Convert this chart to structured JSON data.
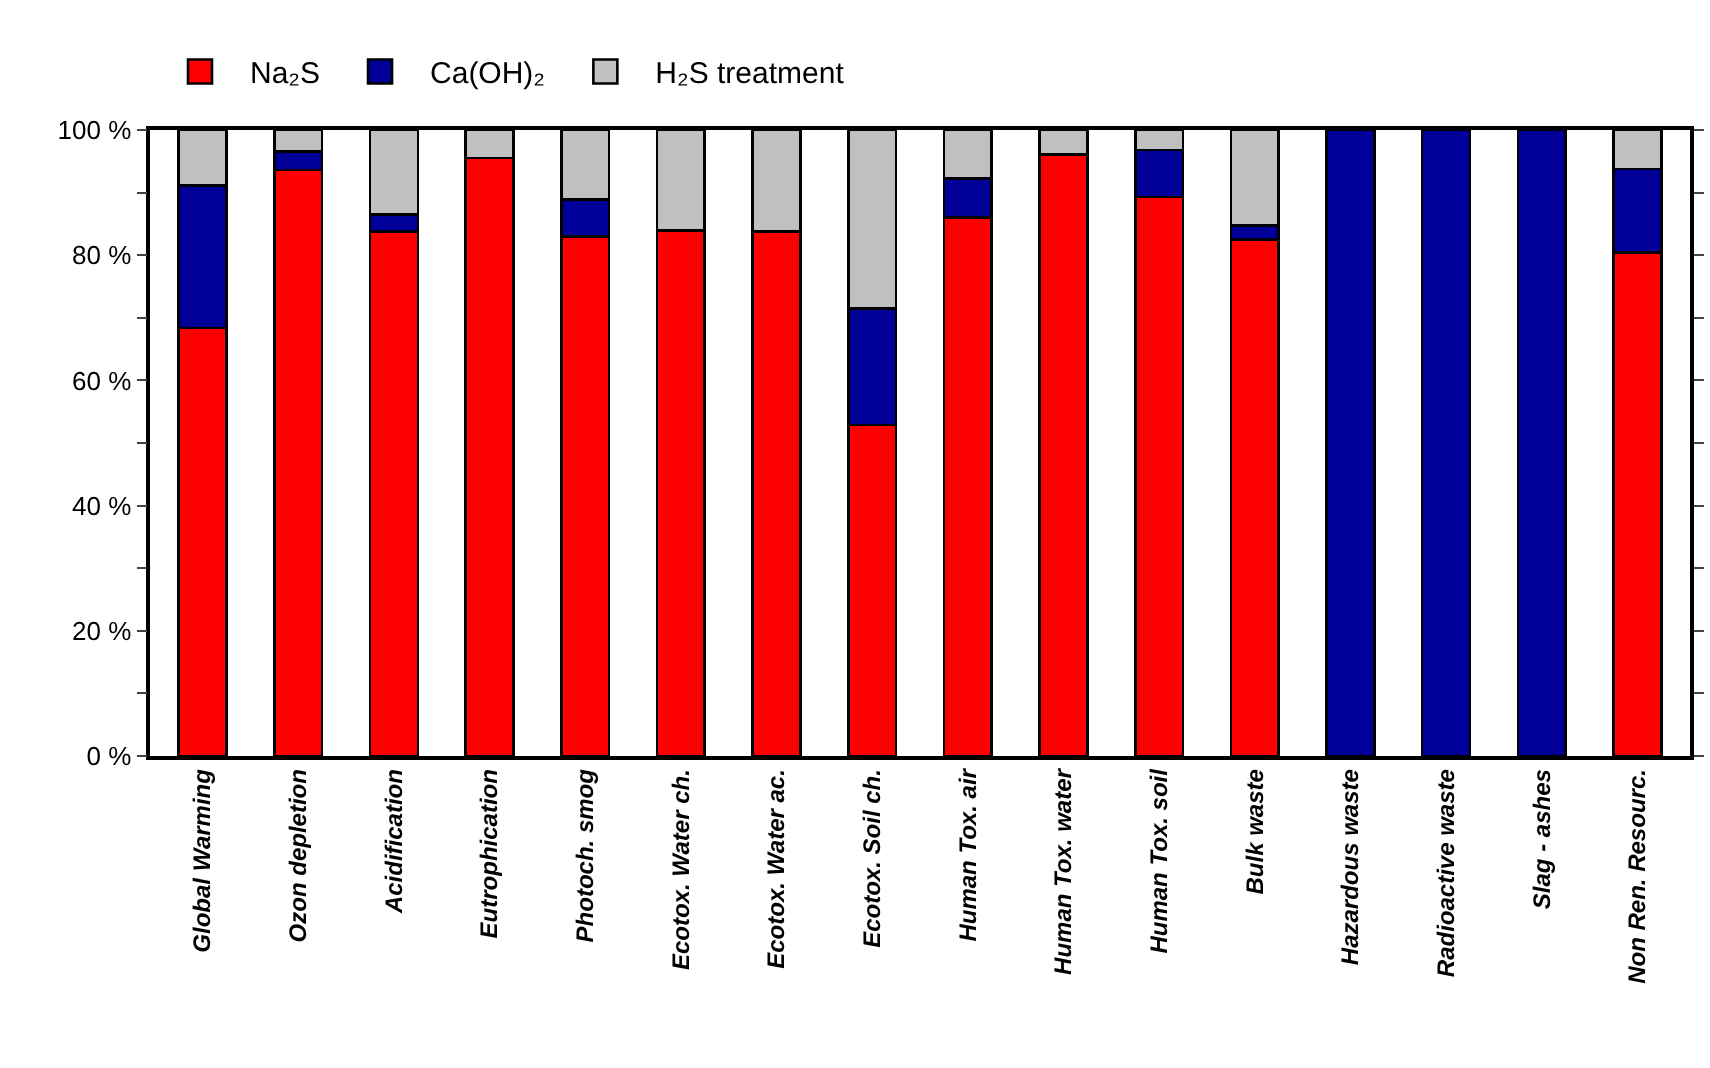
{
  "chart_data": {
    "type": "bar",
    "stacked": true,
    "categories": [
      "Global Warming",
      "Ozon depletion",
      "Acidification",
      "Eutrophication",
      "Photoch. smog",
      "Ecotox. Water ch.",
      "Ecotox. Water ac.",
      "Ecotox. Soil ch.",
      "Human Tox. air",
      "Human Tox. water",
      "Human Tox. soil",
      "Bulk waste",
      "Hazardous waste",
      "Radioactive waste",
      "Slag - ashes",
      "Non Ren. Resourc."
    ],
    "series": [
      {
        "name": "Na₂S",
        "color": "#ff0000",
        "values": [
          68.4,
          93.6,
          83.8,
          95.5,
          83.0,
          83.9,
          83.8,
          52.9,
          86.0,
          96.1,
          89.3,
          82.5,
          0,
          0,
          0,
          80.4
        ]
      },
      {
        "name": "Ca(OH)₂",
        "color": "#000099",
        "values": [
          22.7,
          3.0,
          2.7,
          0,
          5.9,
          0,
          0,
          18.6,
          6.3,
          0,
          7.5,
          2.2,
          100,
          100,
          100,
          13.4
        ]
      },
      {
        "name": "H₂S treatment",
        "color": "#c0c0c0",
        "values": [
          8.9,
          3.4,
          13.5,
          4.5,
          11.1,
          16.1,
          16.2,
          28.5,
          7.7,
          3.9,
          3.2,
          15.3,
          0,
          0,
          0,
          6.2
        ]
      }
    ],
    "ylim": [
      0,
      100
    ],
    "yticks": [
      {
        "value": 0,
        "label": "0 %"
      },
      {
        "value": 10,
        "label": null
      },
      {
        "value": 20,
        "label": "20 %"
      },
      {
        "value": 30,
        "label": null
      },
      {
        "value": 40,
        "label": "40 %"
      },
      {
        "value": 50,
        "label": null
      },
      {
        "value": 60,
        "label": "60 %"
      },
      {
        "value": 70,
        "label": null
      },
      {
        "value": 80,
        "label": "80 %"
      },
      {
        "value": 90,
        "label": null
      },
      {
        "value": 100,
        "label": "100 %"
      }
    ],
    "legend": "top left"
  }
}
